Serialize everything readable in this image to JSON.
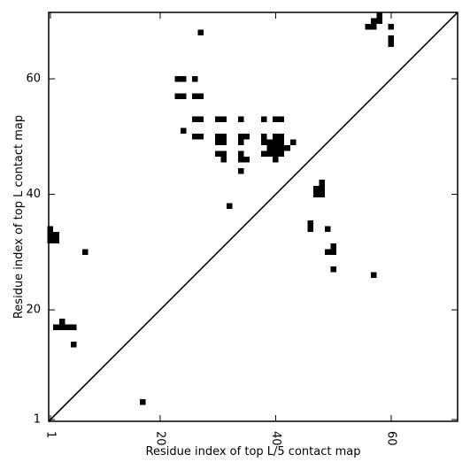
{
  "chart_data": {
    "type": "heatmap",
    "title": "",
    "xlabel": "Residue index of top L/5 contact map",
    "ylabel": "Residue index of top L contact map",
    "xlim": [
      0.7,
      71.5
    ],
    "ylim": [
      0.7,
      71.5
    ],
    "xticks": [
      1,
      20,
      40,
      60
    ],
    "yticks": [
      1,
      20,
      40,
      60
    ],
    "x_tick_labels": [
      "1",
      "20",
      "40",
      "60"
    ],
    "y_tick_labels": [
      "1",
      "20",
      "40",
      "60"
    ],
    "x_tick_rotation_deg": -90,
    "diagonal": true,
    "grid": false,
    "legend": "none",
    "cell_color": "#000000",
    "upper_triangle_top_L": [
      [
        23,
        60
      ],
      [
        24,
        60
      ],
      [
        26,
        60
      ],
      [
        23,
        57
      ],
      [
        24,
        57
      ],
      [
        26,
        57
      ],
      [
        27,
        57
      ],
      [
        26,
        53
      ],
      [
        27,
        53
      ],
      [
        30,
        53
      ],
      [
        31,
        53
      ],
      [
        34,
        53
      ],
      [
        38,
        53
      ],
      [
        40,
        53
      ],
      [
        41,
        53
      ],
      [
        24,
        51
      ],
      [
        26,
        50
      ],
      [
        27,
        50
      ],
      [
        30,
        50
      ],
      [
        31,
        50
      ],
      [
        34,
        50
      ],
      [
        35,
        50
      ],
      [
        38,
        50
      ],
      [
        40,
        50
      ],
      [
        41,
        50
      ],
      [
        30,
        49
      ],
      [
        31,
        49
      ],
      [
        34,
        49
      ],
      [
        38,
        49
      ],
      [
        39,
        49
      ],
      [
        40,
        49
      ],
      [
        41,
        49
      ],
      [
        43,
        49
      ],
      [
        39,
        48
      ],
      [
        40,
        48
      ],
      [
        41,
        48
      ],
      [
        42,
        48
      ],
      [
        30,
        47
      ],
      [
        31,
        47
      ],
      [
        34,
        47
      ],
      [
        38,
        47
      ],
      [
        39,
        47
      ],
      [
        40,
        47
      ],
      [
        41,
        47
      ],
      [
        31,
        46
      ],
      [
        34,
        46
      ],
      [
        35,
        46
      ],
      [
        40,
        46
      ],
      [
        34,
        44
      ],
      [
        27,
        68
      ],
      [
        32,
        38
      ]
    ],
    "lower_triangle_top_L5": [
      [
        58,
        71
      ],
      [
        57,
        70
      ],
      [
        58,
        70
      ],
      [
        56,
        69
      ],
      [
        57,
        69
      ],
      [
        60,
        69
      ],
      [
        60,
        67
      ],
      [
        60,
        66
      ],
      [
        47,
        41
      ],
      [
        48,
        41
      ],
      [
        47,
        40
      ],
      [
        48,
        40
      ],
      [
        48,
        42
      ],
      [
        46,
        35
      ],
      [
        46,
        34
      ],
      [
        49,
        34
      ],
      [
        50,
        31
      ],
      [
        49,
        30
      ],
      [
        50,
        30
      ],
      [
        50,
        27
      ],
      [
        57,
        26
      ],
      [
        1,
        34
      ],
      [
        1,
        33
      ],
      [
        2,
        33
      ],
      [
        1,
        32
      ],
      [
        2,
        32
      ],
      [
        7,
        30
      ],
      [
        3,
        18
      ],
      [
        3,
        17
      ],
      [
        4,
        17
      ],
      [
        5,
        17
      ],
      [
        2,
        17
      ],
      [
        5,
        14
      ],
      [
        17,
        4
      ]
    ]
  }
}
